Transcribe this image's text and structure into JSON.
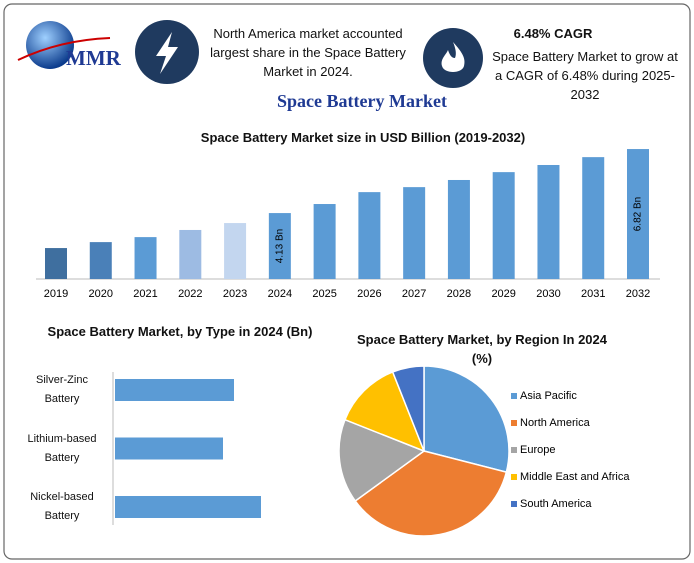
{
  "header": {
    "logo": "MMR",
    "info_1": "North America market accounted largest share in the Space Battery Market in 2024.",
    "info_2_title": "6.48% CAGR",
    "info_2": "Space Battery Market to grow at a CAGR of 6.48% during 2025-2032",
    "title": "Space Battery Market"
  },
  "chart_data": [
    {
      "type": "bar",
      "title": "Space Battery Market size in USD Billion (2019-2032)",
      "categories": [
        "2019",
        "2020",
        "2021",
        "2022",
        "2023",
        "2024",
        "2025",
        "2026",
        "2027",
        "2028",
        "2029",
        "2030",
        "2031",
        "2032"
      ],
      "values": [
        2.66,
        2.91,
        3.12,
        3.42,
        3.71,
        4.13,
        4.51,
        5.01,
        5.22,
        5.52,
        5.85,
        6.15,
        6.48,
        6.82
      ],
      "value_labels": [
        null,
        null,
        null,
        null,
        null,
        "4.13 Bn",
        null,
        null,
        null,
        null,
        null,
        null,
        null,
        "6.82 Bn"
      ],
      "colors": [
        "#3f6f9f",
        "#4a80b8",
        "#5b9bd5",
        "#9dbbe3",
        "#c3d6ef",
        "#5b9bd5",
        "#5b9bd5",
        "#5b9bd5",
        "#5b9bd5",
        "#5b9bd5",
        "#5b9bd5",
        "#5b9bd5",
        "#5b9bd5",
        "#5b9bd5"
      ],
      "ylim": [
        1.36,
        7.2
      ]
    },
    {
      "type": "barh",
      "title": "Space Battery Market, by Type in 2024 (Bn)",
      "categories": [
        "Silver-Zinc Battery",
        "Lithium-based Battery",
        "Nickel-based Battery"
      ],
      "values": [
        1.19,
        1.08,
        1.46
      ],
      "color": "#5b9bd5",
      "xlim": [
        0,
        1.6
      ]
    },
    {
      "type": "pie",
      "title": "Space Battery Market, by Region In 2024 (%)",
      "categories": [
        "Asia Pacific",
        "North America",
        "Europe",
        "Middle East and Africa",
        "South America"
      ],
      "values": [
        29,
        36,
        16,
        13,
        6
      ],
      "colors": [
        "#5b9bd5",
        "#ed7d31",
        "#a5a5a5",
        "#ffc000",
        "#4472c4"
      ]
    }
  ]
}
